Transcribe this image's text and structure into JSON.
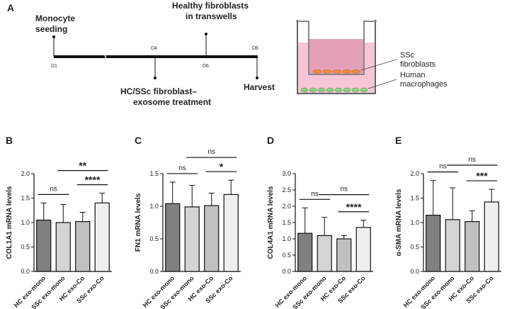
{
  "panel_a": {
    "letter": "A",
    "days": [
      "D1",
      "D4",
      "D6",
      "D8"
    ],
    "monocyte_seeding": [
      "Monocyte",
      "seeding"
    ],
    "healthy_fibroblasts": [
      "Healthy fibroblasts",
      "in transwells"
    ],
    "treatment": [
      "HC/SSc fibroblast–",
      "exosome treatment"
    ],
    "harvest": "Harvest",
    "ssc_fibroblasts": [
      "SSc",
      "fibroblasts"
    ],
    "human_macrophages": [
      "Human",
      "macrophages"
    ]
  },
  "chart_data": [
    {
      "type": "bar",
      "panel": "B",
      "ylabel": "COL1A1 mRNA levels",
      "categories": [
        "HC exo-mono",
        "SSc exo-mono",
        "HC exo-Co",
        "SSc exo-Co"
      ],
      "values": [
        1.05,
        1.0,
        1.02,
        1.4
      ],
      "errors": [
        0.35,
        0.37,
        0.19,
        0.2
      ],
      "colors": [
        "#808080",
        "#d4d4d4",
        "#c0c0c0",
        "#efefef"
      ],
      "ylim": [
        0,
        2.0
      ],
      "yticks": [
        {
          "value": 0,
          "label": "0.0"
        },
        {
          "value": 0.5,
          "label": "0.5"
        },
        {
          "value": 1,
          "label": "1.0"
        },
        {
          "value": 1.5,
          "label": "1.5"
        },
        {
          "value": 2,
          "label": "2.0"
        }
      ],
      "comparisons": [
        {
          "pair": [
            0,
            1
          ],
          "label": "ns"
        },
        {
          "pair": [
            1,
            3
          ],
          "label": "**"
        },
        {
          "pair": [
            2,
            3
          ],
          "label": "****"
        }
      ]
    },
    {
      "type": "bar",
      "panel": "C",
      "ylabel": "FN1 mRNA levels",
      "categories": [
        "HC exo-mono",
        "SSc exo-mono",
        "HC exo-Co",
        "SSc exo-Co"
      ],
      "values": [
        1.04,
        0.99,
        1.01,
        1.18
      ],
      "errors": [
        0.33,
        0.33,
        0.19,
        0.22
      ],
      "colors": [
        "#808080",
        "#d4d4d4",
        "#c0c0c0",
        "#efefef"
      ],
      "ylim": [
        0,
        1.5
      ],
      "yticks": [
        {
          "value": 0,
          "label": "0.0"
        },
        {
          "value": 0.5,
          "label": "0.5"
        },
        {
          "value": 1,
          "label": "1.0"
        },
        {
          "value": 1.5,
          "label": "1.5"
        }
      ],
      "comparisons": [
        {
          "pair": [
            0,
            1
          ],
          "label": "ns"
        },
        {
          "pair": [
            1,
            3
          ],
          "label": "ns"
        },
        {
          "pair": [
            2,
            3
          ],
          "label": "*"
        }
      ]
    },
    {
      "type": "bar",
      "panel": "D",
      "ylabel": "COL4A1 mRNA levels",
      "categories": [
        "HC exo-mono",
        "SSc exo-mono",
        "HC exo-Co",
        "SSc exo-Co"
      ],
      "values": [
        1.17,
        1.1,
        1.0,
        1.35
      ],
      "errors": [
        0.78,
        0.56,
        0.1,
        0.22
      ],
      "colors": [
        "#808080",
        "#d4d4d4",
        "#c0c0c0",
        "#efefef"
      ],
      "ylim": [
        0,
        3.0
      ],
      "yticks": [
        {
          "value": 0,
          "label": "0.0"
        },
        {
          "value": 0.5,
          "label": "0.5"
        },
        {
          "value": 1,
          "label": "1.0"
        },
        {
          "value": 1.5,
          "label": "1.5"
        },
        {
          "value": 2,
          "label": "2.0"
        },
        {
          "value": 2.5,
          "label": "2.5"
        },
        {
          "value": 3,
          "label": "3.0"
        }
      ],
      "comparisons": [
        {
          "pair": [
            0,
            1
          ],
          "label": "ns"
        },
        {
          "pair": [
            1,
            3
          ],
          "label": "ns"
        },
        {
          "pair": [
            2,
            3
          ],
          "label": "****"
        }
      ]
    },
    {
      "type": "bar",
      "panel": "E",
      "ylabel": "α-SMA mRNA levels",
      "categories": [
        "HC exo-mono",
        "SSc exo-mono",
        "HC exo-Co",
        "SSc exo-Co"
      ],
      "values": [
        1.15,
        1.06,
        1.02,
        1.42
      ],
      "errors": [
        0.71,
        0.65,
        0.22,
        0.26
      ],
      "colors": [
        "#808080",
        "#d4d4d4",
        "#c0c0c0",
        "#efefef"
      ],
      "ylim": [
        0,
        2.0
      ],
      "yticks": [
        {
          "value": 0,
          "label": "0.0"
        },
        {
          "value": 0.5,
          "label": "0.5"
        },
        {
          "value": 1,
          "label": "1.0"
        },
        {
          "value": 1.5,
          "label": "1.5"
        },
        {
          "value": 2,
          "label": "2.0"
        }
      ],
      "comparisons": [
        {
          "pair": [
            0,
            1
          ],
          "label": "ns"
        },
        {
          "pair": [
            1,
            3
          ],
          "label": "ns"
        },
        {
          "pair": [
            2,
            3
          ],
          "label": "***"
        }
      ]
    }
  ]
}
